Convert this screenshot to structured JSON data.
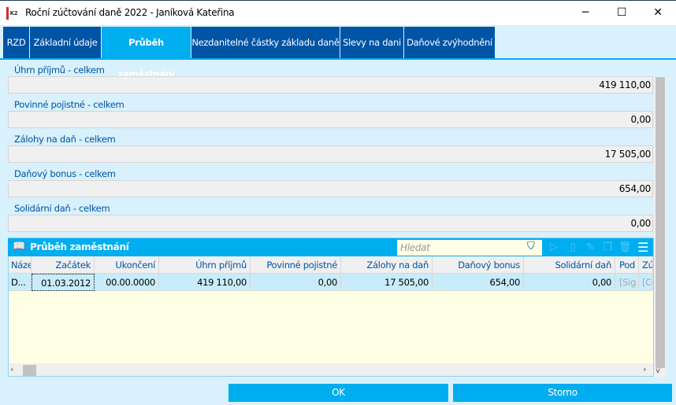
{
  "window": {
    "title": "Roční zúčtování daně 2022 - Janíková Kateřina",
    "logo": "K2",
    "minimize": "─",
    "maximize": "☐",
    "close": "✕"
  },
  "tabs": [
    {
      "label": "RZD"
    },
    {
      "label": "Základní údaje"
    },
    {
      "label": "Průběh zaměstnání",
      "active": true
    },
    {
      "label": "Nezdanitelné částky základu daně"
    },
    {
      "label": "Slevy na dani"
    },
    {
      "label": "Daňové zvýhodnění"
    }
  ],
  "fields": [
    {
      "label": "Úhrn příjmů - celkem",
      "value": "419 110,00"
    },
    {
      "label": "Povinné pojistné - celkem",
      "value": "0,00"
    },
    {
      "label": "Zálohy na daň - celkem",
      "value": "17 505,00"
    },
    {
      "label": "Daňový bonus - celkem",
      "value": "654,00"
    },
    {
      "label": "Solidární daň - celkem",
      "value": "0,00"
    }
  ],
  "grid": {
    "title": "Průběh zaměstnání",
    "search_placeholder": "Hledat",
    "columns": [
      "Náze",
      "Začátek",
      "Ukončení",
      "Úhrn příjmů",
      "Povinné pojistné",
      "Zálohy na daň",
      "Daňový bonus",
      "Solidární daň",
      "Pod",
      "Zú"
    ],
    "rows": [
      [
        "D...",
        "01.03.2012",
        "00.00.0000",
        "419 110,00",
        "0,00",
        "17 505,00",
        "654,00",
        "0,00",
        "[Sig",
        "[Co"
      ]
    ]
  },
  "buttons": {
    "ok": "OK",
    "cancel": "Storno"
  },
  "colors": {
    "tab": "#0054a6",
    "accent": "#00adef",
    "background": "#d8f1fc"
  }
}
